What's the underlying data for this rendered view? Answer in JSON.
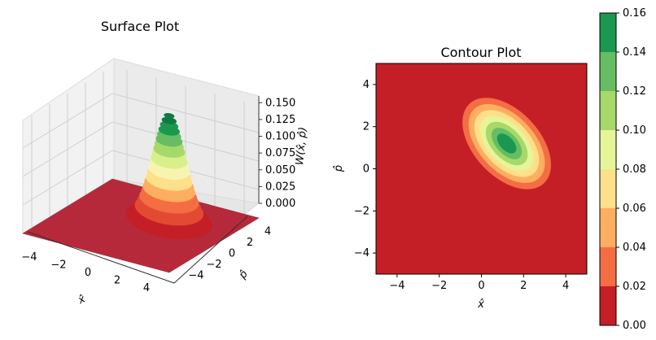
{
  "chart_data": [
    {
      "type": "surface",
      "title": "Surface Plot",
      "xlabel": "x̂",
      "ylabel": "p̂",
      "zlabel": "W(x̂, p̂)",
      "x_ticks": [
        -4,
        -2,
        0,
        2,
        4
      ],
      "y_ticks": [
        -4,
        -2,
        0,
        2,
        4
      ],
      "z_ticks": [
        "0.000",
        "0.025",
        "0.050",
        "0.075",
        "0.100",
        "0.125",
        "0.150"
      ],
      "xlim": [
        -5,
        5
      ],
      "ylim": [
        -5,
        5
      ],
      "zlim": [
        0,
        0.16
      ],
      "colormap": "RdYlGn",
      "peak": {
        "x": 1.2,
        "p": 1.2,
        "z": 0.159
      }
    },
    {
      "type": "contour",
      "title": "Contour Plot",
      "xlabel": "x̂",
      "ylabel": "p̂",
      "x_ticks": [
        -4,
        -2,
        0,
        2,
        4
      ],
      "y_ticks": [
        -4,
        -2,
        0,
        2,
        4
      ],
      "xlim": [
        -5,
        5
      ],
      "ylim": [
        -5,
        5
      ],
      "levels": [
        0.0,
        0.02,
        0.04,
        0.06,
        0.08,
        0.1,
        0.12,
        0.14,
        0.16
      ],
      "colors": [
        "#c41f26",
        "#f46d43",
        "#fdae61",
        "#fee08b",
        "#e6f598",
        "#a6d96a",
        "#66bd63",
        "#1a9850"
      ],
      "center": {
        "x": 1.2,
        "p": 1.2
      },
      "colorbar_ticks": [
        "0.00",
        "0.02",
        "0.04",
        "0.06",
        "0.08",
        "0.10",
        "0.12",
        "0.14",
        "0.16"
      ]
    }
  ]
}
